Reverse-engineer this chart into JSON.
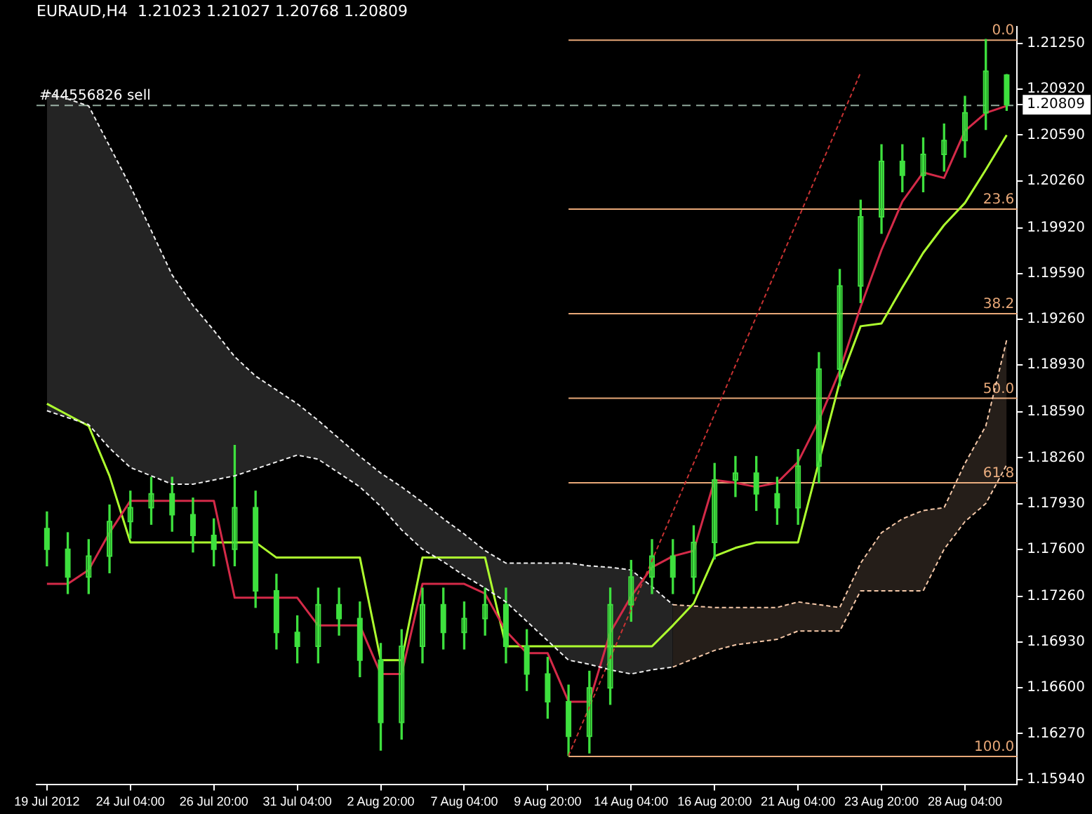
{
  "chart_data": {
    "type": "candlestick",
    "title": "EURAUD,H4  1.21023 1.21027 1.20768 1.20809",
    "color": "#3ee03e",
    "marker": "none",
    "categories": [
      "19 Jul 2012",
      null,
      null,
      null,
      "24 Jul 04:00",
      null,
      null,
      null,
      "26 Jul 20:00",
      null,
      null,
      null,
      "31 Jul 04:00",
      null,
      null,
      null,
      "2 Aug 20:00",
      null,
      null,
      null,
      "7 Aug 04:00",
      null,
      null,
      null,
      "9 Aug 20:00",
      null,
      null,
      null,
      "14 Aug 04:00",
      null,
      null,
      null,
      "16 Aug 20:00",
      null,
      null,
      null,
      "21 Aug 04:00",
      null,
      null,
      null,
      "23 Aug 20:00",
      null,
      null,
      null,
      "28 Aug 04:00",
      null,
      null
    ],
    "ohlc": [
      [
        1.1775,
        1.1787,
        1.1748,
        1.176
      ],
      [
        1.176,
        1.1772,
        1.1728,
        1.174
      ],
      [
        1.174,
        1.1767,
        1.1728,
        1.1755
      ],
      [
        1.1755,
        1.1792,
        1.1743,
        1.178
      ],
      [
        1.178,
        1.1802,
        1.1768,
        1.179
      ],
      [
        1.179,
        1.1812,
        1.1778,
        1.18
      ],
      [
        1.18,
        1.1812,
        1.1773,
        1.1785
      ],
      [
        1.1785,
        1.1797,
        1.1758,
        1.177
      ],
      [
        1.177,
        1.1782,
        1.1748,
        1.176
      ],
      [
        1.176,
        1.1835,
        1.1748,
        1.179
      ],
      [
        1.179,
        1.1802,
        1.1718,
        1.173
      ],
      [
        1.173,
        1.1742,
        1.1688,
        1.17
      ],
      [
        1.17,
        1.1712,
        1.1678,
        1.169
      ],
      [
        1.169,
        1.1732,
        1.1678,
        1.172
      ],
      [
        1.172,
        1.1732,
        1.1698,
        1.171
      ],
      [
        1.171,
        1.1722,
        1.1668,
        1.168
      ],
      [
        1.168,
        1.1692,
        1.1615,
        1.1635
      ],
      [
        1.1635,
        1.1702,
        1.1623,
        1.169
      ],
      [
        1.169,
        1.1732,
        1.1678,
        1.172
      ],
      [
        1.172,
        1.1732,
        1.1688,
        1.17
      ],
      [
        1.17,
        1.1722,
        1.1688,
        1.171
      ],
      [
        1.171,
        1.1732,
        1.1698,
        1.172
      ],
      [
        1.172,
        1.1732,
        1.1678,
        1.169
      ],
      [
        1.169,
        1.1702,
        1.1658,
        1.167
      ],
      [
        1.167,
        1.1682,
        1.1638,
        1.165
      ],
      [
        1.165,
        1.1662,
        1.1611,
        1.1625
      ],
      [
        1.1625,
        1.1672,
        1.1613,
        1.166
      ],
      [
        1.166,
        1.1732,
        1.1648,
        1.172
      ],
      [
        1.172,
        1.1752,
        1.1708,
        1.174
      ],
      [
        1.174,
        1.1767,
        1.1728,
        1.1755
      ],
      [
        1.1755,
        1.1767,
        1.1728,
        1.174
      ],
      [
        1.174,
        1.1777,
        1.1728,
        1.1765
      ],
      [
        1.1765,
        1.1822,
        1.1753,
        1.181
      ],
      [
        1.181,
        1.1827,
        1.1798,
        1.1815
      ],
      [
        1.1815,
        1.1827,
        1.1788,
        1.18
      ],
      [
        1.18,
        1.1812,
        1.1778,
        1.179
      ],
      [
        1.179,
        1.1832,
        1.1778,
        1.182
      ],
      [
        1.182,
        1.1902,
        1.1808,
        1.189
      ],
      [
        1.189,
        1.1962,
        1.1878,
        1.195
      ],
      [
        1.195,
        1.2012,
        1.1938,
        1.2
      ],
      [
        1.2,
        1.2052,
        1.1988,
        1.204
      ],
      [
        1.204,
        1.2052,
        1.2018,
        1.203
      ],
      [
        1.203,
        1.2057,
        1.2018,
        1.2045
      ],
      [
        1.2045,
        1.2067,
        1.2033,
        1.2055
      ],
      [
        1.2055,
        1.2087,
        1.2043,
        1.2075
      ],
      [
        1.2075,
        1.2128,
        1.2063,
        1.2105
      ],
      [
        1.21023,
        1.21027,
        1.20768,
        1.20809
      ]
    ],
    "series": [
      {
        "type": "line",
        "color": "#f0f0f0",
        "line_style": "dotted",
        "values": [
          1.186,
          1.1855,
          1.185,
          1.1833,
          1.1819,
          1.1813,
          1.1807,
          1.1807,
          1.181,
          1.1813,
          1.1818,
          1.1823,
          1.1828,
          1.1825,
          1.1815,
          1.1805,
          1.1791,
          1.1774,
          1.176,
          1.1751,
          1.1741,
          1.1732,
          1.1722,
          1.1708,
          1.1694,
          1.168,
          1.1677,
          1.1673,
          1.167,
          1.1673,
          1.1675,
          null,
          null,
          null,
          null,
          null,
          null,
          null,
          null,
          null,
          null,
          null,
          null,
          null,
          null,
          null,
          null
        ]
      },
      {
        "type": "area",
        "color": "#f0f0f0",
        "line_style": "dotted",
        "values": [
          1.209,
          1.2085,
          1.208,
          1.2051,
          1.2022,
          1.199,
          1.1958,
          1.1936,
          1.1918,
          1.1899,
          1.1885,
          1.1875,
          1.1865,
          1.1853,
          1.184,
          1.1827,
          1.1815,
          1.1805,
          1.1794,
          1.1782,
          1.1771,
          1.1759,
          1.175,
          1.175,
          1.175,
          1.175,
          1.1748,
          1.1747,
          1.1745,
          1.1733,
          1.172,
          null,
          null,
          null,
          null,
          null,
          null,
          null,
          null,
          null,
          null,
          null,
          null,
          null,
          null,
          null,
          null
        ]
      },
      {
        "type": "line",
        "color": "#f5c8a8",
        "line_style": "dotted",
        "values": [
          null,
          null,
          null,
          null,
          null,
          null,
          null,
          null,
          null,
          null,
          null,
          null,
          null,
          null,
          null,
          null,
          null,
          null,
          null,
          null,
          null,
          null,
          null,
          null,
          null,
          null,
          null,
          null,
          null,
          null,
          1.1675,
          1.1681,
          1.1687,
          1.1691,
          1.1693,
          1.1695,
          1.1701,
          1.1701,
          1.1701,
          1.173,
          1.173,
          1.173,
          1.173,
          1.176,
          1.178,
          1.1793,
          1.1821
        ]
      },
      {
        "type": "area",
        "color": "#f5c8a8",
        "line_style": "dotted",
        "values": [
          null,
          null,
          null,
          null,
          null,
          null,
          null,
          null,
          null,
          null,
          null,
          null,
          null,
          null,
          null,
          null,
          null,
          null,
          null,
          null,
          null,
          null,
          null,
          null,
          null,
          null,
          null,
          null,
          null,
          null,
          1.172,
          1.1719,
          1.1718,
          1.1718,
          1.1718,
          1.1718,
          1.1722,
          1.172,
          1.1718,
          1.175,
          1.1772,
          1.1782,
          1.1788,
          1.179,
          1.1822,
          1.1849,
          1.1911
        ]
      },
      {
        "type": "line",
        "color": "#d42a48",
        "line_style": "solid",
        "values": [
          1.1735,
          1.1735,
          1.1745,
          1.1772,
          1.1795,
          1.1795,
          1.1795,
          1.1795,
          1.1795,
          1.1725,
          1.1725,
          1.1725,
          1.1725,
          1.1705,
          1.1705,
          1.1705,
          1.167,
          1.167,
          1.1735,
          1.1735,
          1.1735,
          1.1728,
          1.1701,
          1.1685,
          1.1685,
          1.165,
          1.165,
          1.17,
          1.1726,
          1.1747,
          1.1755,
          1.1759,
          1.181,
          1.1808,
          1.1805,
          1.1808,
          1.1823,
          1.1853,
          1.1889,
          1.1935,
          1.1976,
          1.2011,
          1.2032,
          1.2028,
          1.2062,
          1.2075,
          1.208
        ]
      },
      {
        "type": "line",
        "color": "#adff2f",
        "line_style": "solid",
        "values": [
          1.1865,
          1.1857,
          1.1849,
          1.1813,
          1.1765,
          1.1765,
          1.1765,
          1.1765,
          1.1765,
          1.1765,
          1.1765,
          1.1754,
          1.1754,
          1.1754,
          1.1754,
          1.1754,
          1.168,
          1.168,
          1.1754,
          1.1754,
          1.1754,
          1.1754,
          1.169,
          1.169,
          1.169,
          1.169,
          1.169,
          1.169,
          1.169,
          1.169,
          1.1705,
          1.1721,
          1.1755,
          1.1761,
          1.1765,
          1.1765,
          1.1765,
          null,
          1.1881,
          1.1921,
          1.1923,
          1.1949,
          1.1974,
          1.1994,
          1.201,
          1.2034,
          1.2059
        ]
      },
      {
        "type": "line",
        "color": "#c83232",
        "line_style": "dotted",
        "values": [
          null,
          null,
          null,
          null,
          null,
          null,
          null,
          null,
          null,
          null,
          null,
          null,
          null,
          null,
          null,
          null,
          null,
          null,
          null,
          null,
          null,
          null,
          null,
          null,
          null,
          1.1611,
          null,
          null,
          null,
          null,
          null,
          null,
          null,
          null,
          null,
          null,
          null,
          null,
          null,
          1.2104,
          null,
          null,
          null,
          null,
          null,
          null,
          null
        ]
      }
    ],
    "ref_lines": [
      {
        "axis": "y",
        "value": 1.20809,
        "label": "#44556826 sell",
        "color": "#8fa89a",
        "line_style": "dashed"
      },
      {
        "axis": "y",
        "value": 1.2128,
        "color": "#e8a878",
        "line_style": "solid"
      },
      {
        "axis": "y",
        "value": 1.2006,
        "color": "#e8a878",
        "line_style": "solid"
      },
      {
        "axis": "y",
        "value": 1.19305,
        "color": "#e8a878",
        "line_style": "solid"
      },
      {
        "axis": "y",
        "value": 1.18695,
        "color": "#e8a878",
        "line_style": "solid"
      },
      {
        "axis": "y",
        "value": 1.18085,
        "color": "#e8a878",
        "line_style": "solid"
      },
      {
        "axis": "y",
        "value": 1.1611,
        "color": "#e8a878",
        "line_style": "solid"
      }
    ],
    "annotations": [
      {
        "text": "0.0",
        "y": 1.2128
      },
      {
        "text": "23.6",
        "y": 1.2006
      },
      {
        "text": "38.2",
        "y": 1.19305
      },
      {
        "text": "50.0",
        "y": 1.18695
      },
      {
        "text": "61.8",
        "y": 1.18085
      },
      {
        "text": "100.0",
        "y": 1.1611
      }
    ],
    "ylim": [
      1.159,
      1.2137
    ],
    "yticks": [
      {
        "value": 1.2125,
        "label": "1.21250"
      },
      {
        "value": 1.2092,
        "label": "1.20920"
      },
      1.20809,
      {
        "value": 1.2059,
        "label": "1.20590"
      },
      {
        "value": 1.2026,
        "label": "1.20260"
      },
      {
        "value": 1.1992,
        "label": "1.19920"
      },
      {
        "value": 1.1959,
        "label": "1.19590"
      },
      {
        "value": 1.1926,
        "label": "1.19260"
      },
      {
        "value": 1.1893,
        "label": "1.18930"
      },
      {
        "value": 1.1859,
        "label": "1.18590"
      },
      {
        "value": 1.1826,
        "label": "1.18260"
      },
      {
        "value": 1.1793,
        "label": "1.17930"
      },
      {
        "value": 1.176,
        "label": "1.17600"
      },
      {
        "value": 1.1726,
        "label": "1.17260"
      },
      {
        "value": 1.1693,
        "label": "1.16930"
      },
      {
        "value": 1.166,
        "label": "1.16600"
      },
      {
        "value": 1.1627,
        "label": "1.16270"
      },
      {
        "value": 1.1594,
        "label": "1.15940"
      }
    ]
  }
}
